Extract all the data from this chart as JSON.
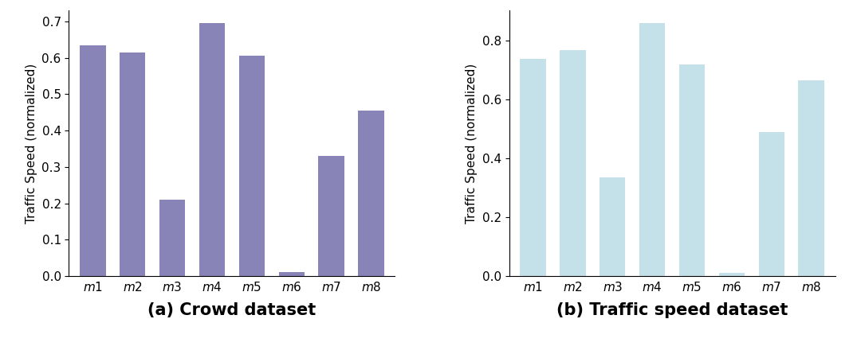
{
  "categories": [
    "m1",
    "m2",
    "m3",
    "m4",
    "m5",
    "m6",
    "m7",
    "m8"
  ],
  "values_a": [
    0.635,
    0.615,
    0.21,
    0.695,
    0.605,
    0.012,
    0.33,
    0.455
  ],
  "values_b": [
    0.74,
    0.77,
    0.335,
    0.86,
    0.72,
    0.01,
    0.49,
    0.665
  ],
  "color_a": "#8884b8",
  "color_b": "#c4e0e8",
  "ylabel": "Traffic Speed (normalized)",
  "title_a": "(a) Crowd dataset",
  "title_b": "(b) Traffic speed dataset",
  "title_fontsize": 15,
  "label_fontsize": 11,
  "tick_fontsize": 11,
  "background_color": "#ffffff"
}
